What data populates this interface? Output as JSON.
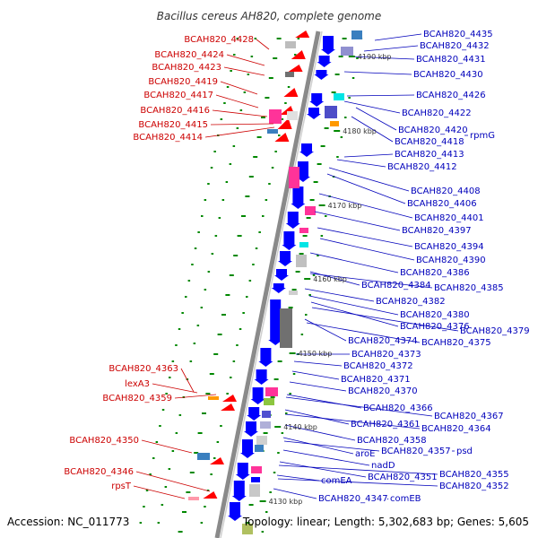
{
  "title": "Bacillus cereus AH820, complete genome",
  "accession": "Accession: NC_011773",
  "topology": "Topology: linear; Length: 5,302,683 bp; Genes: 5,605",
  "colors": {
    "left_label": "#cc0000",
    "right_label": "#0000bb",
    "backbone": "#8a8a8a",
    "forward_gene": "#ff0000",
    "reverse_gene": "#0000ff",
    "tick": "#008800"
  },
  "kbp_ticks": [
    "4190 kbp",
    "4180 kbp",
    "4170 kbp",
    "4160 kbp",
    "4150 kbp",
    "4140 kbp",
    "4130 kbp"
  ],
  "left_labels": [
    "BCAH820_4428",
    "BCAH820_4424",
    "BCAH820_4423",
    "BCAH820_4419",
    "BCAH820_4417",
    "BCAH820_4416",
    "BCAH820_4415",
    "BCAH820_4414",
    "BCAH820_4363",
    "lexA3",
    "BCAH820_4359",
    "BCAH820_4350",
    "BCAH820_4346",
    "rpsT"
  ],
  "right_labels": [
    "BCAH820_4435",
    "BCAH820_4432",
    "BCAH820_4431",
    "BCAH820_4430",
    "BCAH820_4426",
    "BCAH820_4422",
    "BCAH820_4420",
    "rpmG",
    "BCAH820_4418",
    "BCAH820_4413",
    "BCAH820_4412",
    "BCAH820_4408",
    "BCAH820_4406",
    "BCAH820_4401",
    "BCAH820_4397",
    "BCAH820_4394",
    "BCAH820_4390",
    "BCAH820_4386",
    "BCAH820_4384",
    "BCAH820_4385",
    "BCAH820_4382",
    "BCAH820_4380",
    "BCAH820_4376",
    "BCAH820_4379",
    "BCAH820_4374",
    "BCAH820_4375",
    "BCAH820_4373",
    "BCAH820_4372",
    "BCAH820_4371",
    "BCAH820_4370",
    "BCAH820_4366",
    "BCAH820_4367",
    "BCAH820_4361",
    "BCAH820_4364",
    "BCAH820_4358",
    "aroE",
    "BCAH820_4357",
    "psd",
    "nadD",
    "BCAH820_4351",
    "BCAH820_4355",
    "comEA",
    "BCAH820_4352",
    "BCAH820_4347",
    "comEB"
  ]
}
